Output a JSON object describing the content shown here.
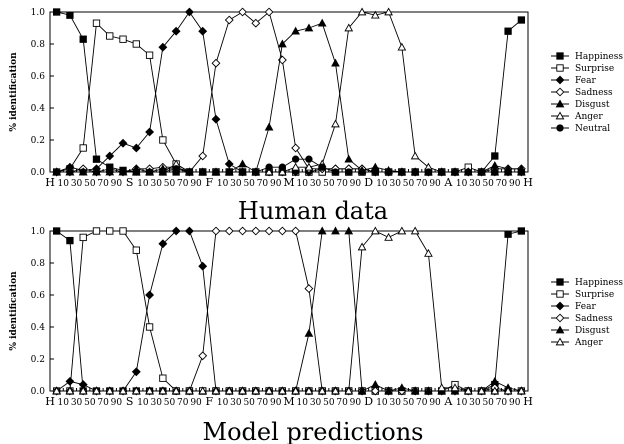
{
  "chart_data": [
    {
      "type": "line",
      "ylabel": "% identification",
      "caption": "Human data",
      "ylim": [
        0,
        1
      ],
      "yticks": [
        "0.0",
        "0.2",
        "0.4",
        "0.6",
        "0.8",
        "1.0"
      ],
      "xticks": [
        "H",
        "10",
        "30",
        "50",
        "70",
        "90",
        "S",
        "10",
        "30",
        "50",
        "70",
        "90",
        "F",
        "10",
        "30",
        "50",
        "70",
        "90",
        "M",
        "10",
        "30",
        "50",
        "70",
        "90",
        "D",
        "10",
        "30",
        "50",
        "70",
        "90",
        "A",
        "10",
        "30",
        "50",
        "70",
        "90",
        "H"
      ],
      "series": [
        {
          "name": "Happiness",
          "marker": "square-filled",
          "values": [
            1.0,
            0.98,
            0.83,
            0.08,
            0.03,
            0.01,
            0,
            0,
            0,
            0,
            0,
            0,
            0,
            0,
            0,
            0,
            0,
            0,
            0,
            0,
            0,
            0,
            0,
            0,
            0,
            0,
            0,
            0,
            0,
            0,
            0,
            0,
            0,
            0.1,
            0.88,
            0.95
          ]
        },
        {
          "name": "Surprise",
          "marker": "square-open",
          "values": [
            0,
            0.02,
            0.15,
            0.93,
            0.85,
            0.83,
            0.8,
            0.73,
            0.2,
            0.05,
            0,
            0,
            0,
            0,
            0,
            0,
            0,
            0,
            0,
            0,
            0,
            0,
            0,
            0,
            0,
            0,
            0,
            0,
            0,
            0,
            0,
            0.03,
            0,
            0,
            0,
            0
          ]
        },
        {
          "name": "Fear",
          "marker": "diamond-filled",
          "values": [
            0,
            0.03,
            0.01,
            0.02,
            0.1,
            0.18,
            0.15,
            0.25,
            0.78,
            0.88,
            1.0,
            0.88,
            0.33,
            0.05,
            0,
            0,
            0,
            0,
            0,
            0,
            0.02,
            0.02,
            0.02,
            0.02,
            0,
            0,
            0,
            0,
            0,
            0,
            0,
            0,
            0,
            0,
            0,
            0
          ]
        },
        {
          "name": "Sadness",
          "marker": "diamond-open",
          "values": [
            0,
            0,
            0.02,
            0,
            0,
            0,
            0.02,
            0.02,
            0.03,
            0.03,
            0,
            0.1,
            0.68,
            0.95,
            1.0,
            0.93,
            1.0,
            0.7,
            0.15,
            0.02,
            0.02,
            0.02,
            0.02,
            0.02,
            0,
            0,
            0,
            0,
            0,
            0,
            0,
            0,
            0,
            0.02,
            0.02,
            0.02
          ]
        },
        {
          "name": "Disgust",
          "marker": "triangle-filled",
          "values": [
            0,
            0,
            0,
            0,
            0.02,
            0,
            0.02,
            0,
            0.02,
            0.02,
            0,
            0,
            0,
            0,
            0.05,
            0,
            0.28,
            0.8,
            0.88,
            0.9,
            0.93,
            0.68,
            0.08,
            0.01,
            0.03,
            0.01,
            0,
            0,
            0,
            0,
            0,
            0,
            0,
            0.04,
            0.02,
            0.02
          ]
        },
        {
          "name": "Anger",
          "marker": "triangle-open",
          "values": [
            0,
            0,
            0,
            0,
            0,
            0,
            0,
            0,
            0,
            0.05,
            0,
            0,
            0,
            0,
            0,
            0,
            0,
            0,
            0.03,
            0.03,
            0.05,
            0.3,
            0.9,
            1.0,
            0.98,
            1.0,
            0.78,
            0.1,
            0.03,
            0,
            0,
            0,
            0,
            0,
            0,
            0
          ]
        },
        {
          "name": "Neutral",
          "marker": "circle-filled",
          "values": [
            0,
            0,
            0,
            0,
            0,
            0,
            0,
            0,
            0,
            0.02,
            0,
            0,
            0,
            0,
            0,
            0,
            0.03,
            0.03,
            0.08,
            0.08,
            0.03,
            0,
            0,
            0,
            0,
            0,
            0,
            0,
            0,
            0,
            0,
            0,
            0,
            0,
            0,
            0
          ]
        }
      ]
    },
    {
      "type": "line",
      "ylabel": "% identification",
      "caption": "Model predictions",
      "ylim": [
        0,
        1
      ],
      "yticks": [
        "0.0",
        "0.2",
        "0.4",
        "0.6",
        "0.8",
        "1.0"
      ],
      "xticks": [
        "H",
        "10",
        "30",
        "50",
        "70",
        "90",
        "S",
        "10",
        "30",
        "50",
        "70",
        "90",
        "F",
        "10",
        "30",
        "50",
        "70",
        "90",
        "M",
        "10",
        "30",
        "50",
        "70",
        "90",
        "D",
        "10",
        "30",
        "50",
        "70",
        "90",
        "A",
        "10",
        "30",
        "50",
        "70",
        "90",
        "H"
      ],
      "series": [
        {
          "name": "Happiness",
          "marker": "square-filled",
          "values": [
            1.0,
            0.94,
            0,
            0,
            0,
            0,
            0,
            0,
            0,
            0,
            0,
            0,
            0,
            0,
            0,
            0,
            0,
            0,
            0,
            0,
            0,
            0,
            0,
            0,
            0,
            0,
            0,
            0,
            0,
            0,
            0,
            0,
            0,
            0.04,
            0.98,
            1.0
          ]
        },
        {
          "name": "Surprise",
          "marker": "square-open",
          "values": [
            0,
            0,
            0.96,
            1.0,
            1.0,
            1.0,
            0.88,
            0.4,
            0.08,
            0,
            0,
            0,
            0,
            0,
            0,
            0,
            0,
            0,
            0,
            0,
            0,
            0,
            0,
            0,
            0,
            0,
            0,
            0,
            0,
            0,
            0.04,
            0,
            0,
            0,
            0,
            0
          ]
        },
        {
          "name": "Fear",
          "marker": "diamond-filled",
          "values": [
            0,
            0.06,
            0.04,
            0,
            0,
            0,
            0.12,
            0.6,
            0.92,
            1.0,
            1.0,
            0.78,
            0,
            0,
            0,
            0,
            0,
            0,
            0,
            0,
            0,
            0,
            0,
            0,
            0,
            0,
            0,
            0,
            0,
            0,
            0,
            0,
            0,
            0,
            0,
            0
          ]
        },
        {
          "name": "Sadness",
          "marker": "diamond-open",
          "values": [
            0,
            0,
            0,
            0,
            0,
            0,
            0,
            0,
            0,
            0,
            0,
            0.22,
            1.0,
            1.0,
            1.0,
            1.0,
            1.0,
            1.0,
            1.0,
            0.64,
            0,
            0,
            0,
            0,
            0,
            0,
            0,
            0,
            0,
            0,
            0,
            0,
            0,
            0.02,
            0,
            0
          ]
        },
        {
          "name": "Disgust",
          "marker": "triangle-filled",
          "values": [
            0,
            0,
            0,
            0,
            0,
            0,
            0,
            0,
            0,
            0,
            0,
            0,
            0,
            0,
            0,
            0,
            0,
            0,
            0,
            0.36,
            1.0,
            1.0,
            1.0,
            0,
            0.04,
            0,
            0.02,
            0,
            0,
            0,
            0,
            0,
            0,
            0.06,
            0.02,
            0
          ]
        },
        {
          "name": "Anger",
          "marker": "triangle-open",
          "values": [
            0,
            0,
            0,
            0,
            0,
            0,
            0,
            0,
            0,
            0,
            0,
            0,
            0,
            0,
            0,
            0,
            0,
            0,
            0,
            0,
            0,
            0,
            0,
            0.9,
            1.0,
            0.96,
            1.0,
            1.0,
            0.86,
            0.02,
            0.02,
            0,
            0,
            0,
            0,
            0
          ]
        }
      ]
    }
  ]
}
